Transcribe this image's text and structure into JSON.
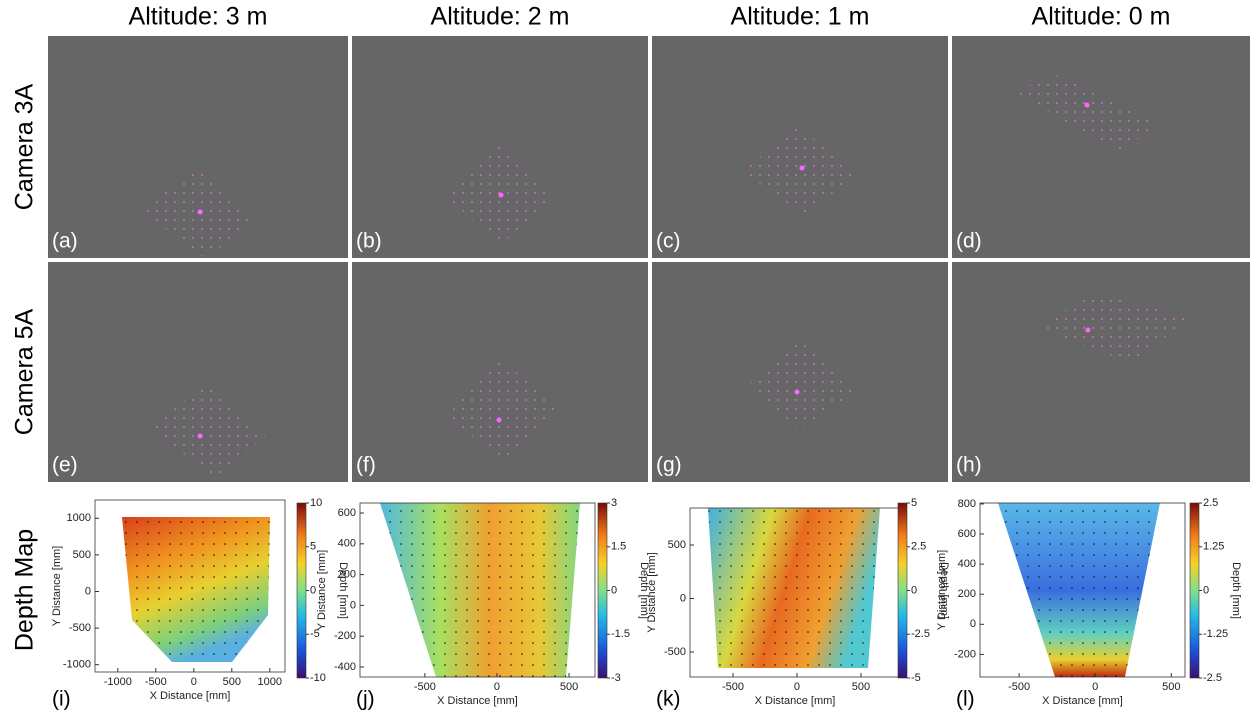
{
  "columns": [
    "Altitude: 3 m",
    "Altitude: 2 m",
    "Altitude: 1 m",
    "Altitude: 0 m"
  ],
  "rows": [
    "Camera 3A",
    "Camera 5A",
    "Depth Map"
  ],
  "camera_panels": [
    "(a)",
    "(b)",
    "(c)",
    "(d)",
    "(e)",
    "(f)",
    "(g)",
    "(h)"
  ],
  "depth_maps": [
    {
      "label": "(i)",
      "xlabel": "X Distance [mm]",
      "ylabel": "Y Distance [mm]",
      "colorbar_label": "Depth [mm]",
      "xlim": [
        -1300,
        1200
      ],
      "ylim": [
        -1100,
        1250
      ],
      "xticks": [
        -1000,
        -500,
        0,
        500,
        1000
      ],
      "yticks": [
        -1000,
        -500,
        0,
        500,
        1000
      ],
      "clim": [
        -10,
        10
      ],
      "cticks": [
        -10,
        -5,
        0,
        5,
        10
      ]
    },
    {
      "label": "(j)",
      "xlabel": "X Distance [mm]",
      "ylabel": "Y Distance [mm]",
      "colorbar_label": "Depth [mm]",
      "xlim": [
        -950,
        680
      ],
      "ylim": [
        -465,
        665
      ],
      "xticks": [
        -500,
        0,
        500
      ],
      "yticks": [
        -400,
        -200,
        0,
        200,
        400,
        600
      ],
      "clim": [
        -3,
        3
      ],
      "cticks": [
        -3,
        -1.5,
        0,
        1.5,
        3
      ]
    },
    {
      "label": "(k)",
      "xlabel": "X Distance [mm]",
      "ylabel": "Y Distance [mm]",
      "colorbar_label": "Depth [mm]",
      "xlim": [
        -836,
        805
      ],
      "ylim": [
        -734,
        846
      ],
      "xticks": [
        -500,
        0,
        500
      ],
      "yticks": [
        -500,
        0,
        500
      ],
      "clim": [
        -5,
        5
      ],
      "cticks": [
        -5,
        -2.5,
        0,
        2.5,
        5
      ]
    },
    {
      "label": "(l)",
      "xlabel": "X Distance [mm]",
      "ylabel": "Y Distance [mm]",
      "colorbar_label": "Depth [mm]",
      "xlim": [
        -757,
        590
      ],
      "ylim": [
        -350,
        806
      ],
      "xticks": [
        -500,
        0,
        500
      ],
      "yticks": [
        -200,
        0,
        200,
        400,
        600,
        800
      ],
      "clim": [
        -2.5,
        2.5
      ],
      "cticks": [
        -2.5,
        -1.25,
        0,
        1.25,
        2.5
      ]
    }
  ]
}
